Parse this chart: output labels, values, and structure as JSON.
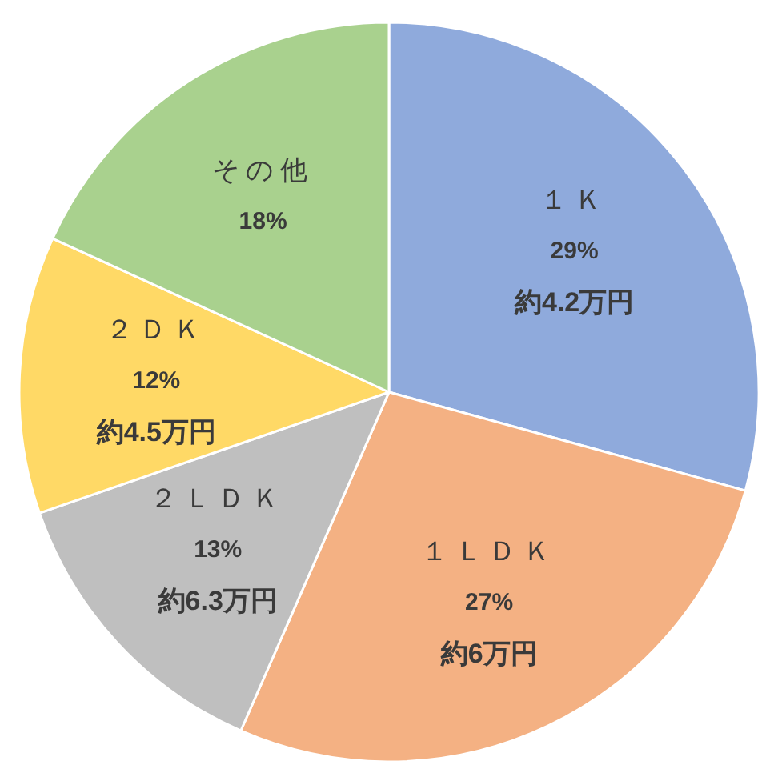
{
  "chart_data": {
    "type": "pie",
    "categories": [
      "１Ｋ",
      "１ＬＤＫ",
      "２ＬＤＫ",
      "２ＤＫ",
      "その他"
    ],
    "values": [
      29,
      27,
      13,
      12,
      18
    ],
    "colors": [
      "#8faadc",
      "#f4b183",
      "#bfbfbf",
      "#ffd966",
      "#a9d18e"
    ],
    "value_labels": [
      "29%\n約4.2万円",
      "27%\n約6万円",
      "13%\n約6.3万円",
      "12%\n約4.5万円",
      "18%"
    ]
  }
}
